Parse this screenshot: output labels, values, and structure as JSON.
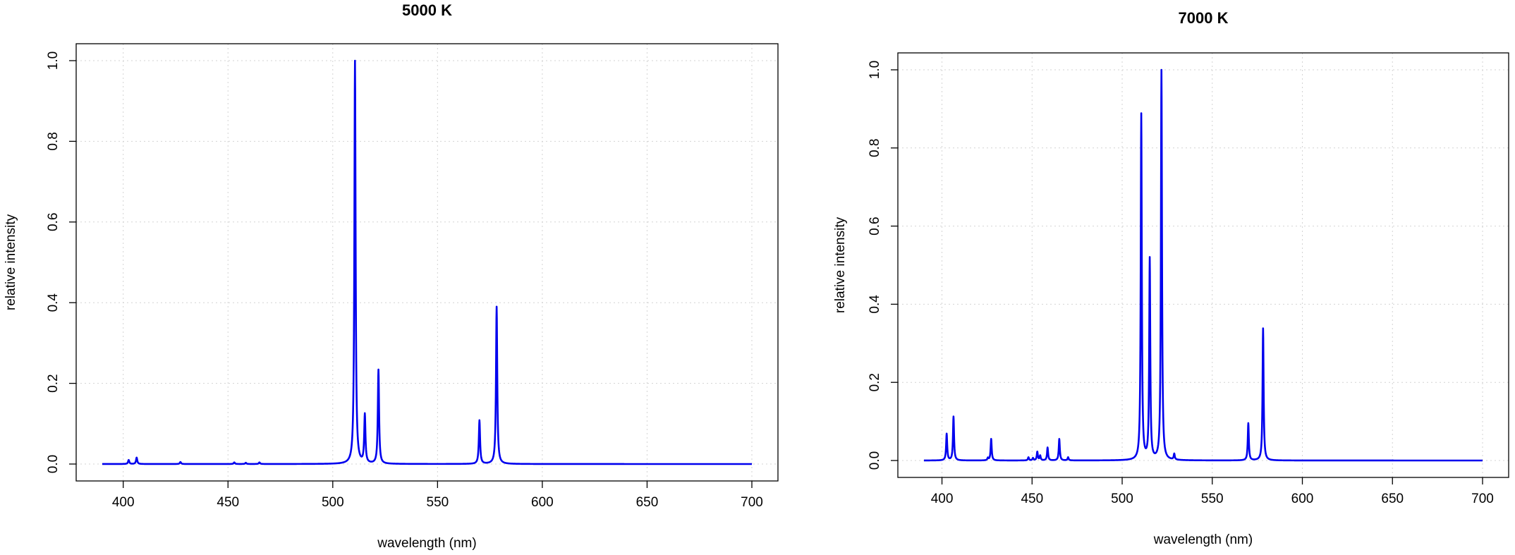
{
  "chart_data": [
    {
      "type": "line",
      "title": "5000 K",
      "xlabel": "wavelength (nm)",
      "ylabel": "relative intensity",
      "xlim": [
        390,
        700
      ],
      "ylim": [
        0,
        1
      ],
      "grid": true,
      "xticks": [
        400,
        450,
        500,
        550,
        600,
        650,
        700
      ],
      "yticks": [
        0.0,
        0.2,
        0.4,
        0.6,
        0.8,
        1.0
      ],
      "ytick_labels": [
        "0.0",
        "0.2",
        "0.4",
        "0.6",
        "0.8",
        "1.0"
      ],
      "baseline": 0.0,
      "peaks": [
        {
          "x": 402.6,
          "y": 0.01
        },
        {
          "x": 406.4,
          "y": 0.016
        },
        {
          "x": 427.3,
          "y": 0.005
        },
        {
          "x": 453.0,
          "y": 0.004
        },
        {
          "x": 458.5,
          "y": 0.003
        },
        {
          "x": 465.0,
          "y": 0.004
        },
        {
          "x": 510.6,
          "y": 1.0
        },
        {
          "x": 515.3,
          "y": 0.12
        },
        {
          "x": 521.8,
          "y": 0.233
        },
        {
          "x": 570.0,
          "y": 0.108
        },
        {
          "x": 578.2,
          "y": 0.39
        }
      ]
    },
    {
      "type": "line",
      "title": "7000 K",
      "xlabel": "wavelength (nm)",
      "ylabel": "relative intensity",
      "xlim": [
        390,
        700
      ],
      "ylim": [
        0,
        1
      ],
      "grid": true,
      "xticks": [
        400,
        450,
        500,
        550,
        600,
        650,
        700
      ],
      "yticks": [
        0.0,
        0.2,
        0.4,
        0.6,
        0.8,
        1.0
      ],
      "ytick_labels": [
        "0.0",
        "0.2",
        "0.4",
        "0.6",
        "0.8",
        "1.0"
      ],
      "baseline": 0.0,
      "peaks": [
        {
          "x": 402.6,
          "y": 0.068
        },
        {
          "x": 406.4,
          "y": 0.112
        },
        {
          "x": 425.5,
          "y": 0.006
        },
        {
          "x": 427.3,
          "y": 0.055
        },
        {
          "x": 448.0,
          "y": 0.008
        },
        {
          "x": 450.5,
          "y": 0.006
        },
        {
          "x": 452.9,
          "y": 0.022
        },
        {
          "x": 454.5,
          "y": 0.012
        },
        {
          "x": 458.6,
          "y": 0.033
        },
        {
          "x": 465.1,
          "y": 0.055
        },
        {
          "x": 470.0,
          "y": 0.008
        },
        {
          "x": 510.6,
          "y": 0.885
        },
        {
          "x": 515.3,
          "y": 0.513
        },
        {
          "x": 521.8,
          "y": 1.0
        },
        {
          "x": 528.9,
          "y": 0.015
        },
        {
          "x": 570.0,
          "y": 0.095
        },
        {
          "x": 578.2,
          "y": 0.338
        }
      ]
    }
  ]
}
